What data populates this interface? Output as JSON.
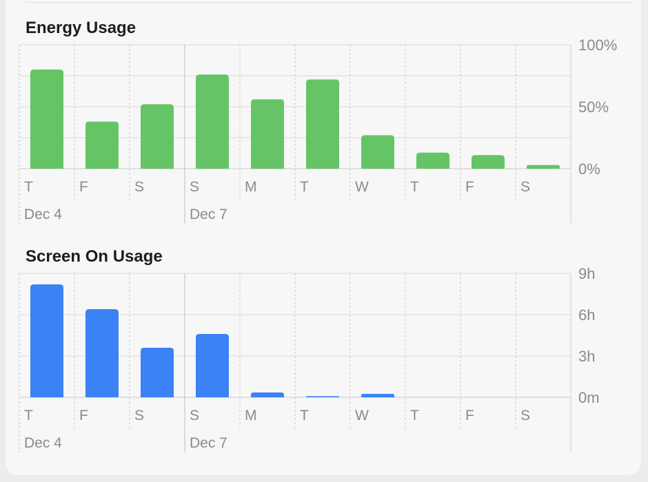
{
  "colors": {
    "energy": "#65c466",
    "screen": "#3a82f6"
  },
  "chart_data": [
    {
      "type": "bar",
      "title": "Energy Usage",
      "categories": [
        "T",
        "F",
        "S",
        "S",
        "M",
        "T",
        "W",
        "T",
        "F",
        "S"
      ],
      "date_labels": [
        {
          "index": 0,
          "label": "Dec 4"
        },
        {
          "index": 3,
          "label": "Dec 7"
        }
      ],
      "series": [
        {
          "values": [
            80,
            38,
            52,
            76,
            56,
            72,
            27,
            13,
            11,
            3
          ]
        }
      ],
      "ylim": [
        0,
        100
      ],
      "yticks": [
        0,
        50,
        100
      ],
      "ytick_labels": [
        "0%",
        "50%",
        "100%"
      ],
      "grid": true
    },
    {
      "type": "bar",
      "title": "Screen On Usage",
      "categories": [
        "T",
        "F",
        "S",
        "S",
        "M",
        "T",
        "W",
        "T",
        "F",
        "S"
      ],
      "date_labels": [
        {
          "index": 0,
          "label": "Dec 4"
        },
        {
          "index": 3,
          "label": "Dec 7"
        }
      ],
      "series": [
        {
          "values": [
            8.2,
            6.4,
            3.6,
            4.6,
            0.35,
            0.08,
            0.25,
            0,
            0,
            0
          ]
        }
      ],
      "ylim": [
        0,
        9
      ],
      "yticks": [
        0,
        3,
        6,
        9
      ],
      "ytick_labels": [
        "0m",
        "3h",
        "6h",
        "9h"
      ],
      "grid": true
    }
  ]
}
